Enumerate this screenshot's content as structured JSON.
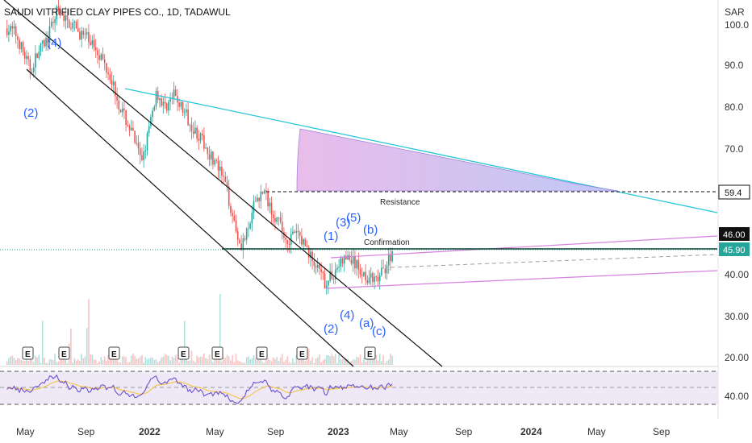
{
  "header": {
    "title": "SAUDI VITRIFIED CLAY PIPES CO., 1D, TADAWUL",
    "currency": "SAR"
  },
  "chart_data": {
    "type": "candlestick",
    "title": "SAUDI VITRIFIED CLAY PIPES CO., 1D, TADAWUL",
    "y_ticks": [
      "100.0",
      "90.0",
      "80.0",
      "70.0",
      "40.00",
      "30.00",
      "20.00"
    ],
    "x_ticks": [
      "May",
      "Sep",
      "2022",
      "May",
      "Sep",
      "2023",
      "May",
      "Sep",
      "2024",
      "May",
      "Sep"
    ],
    "rsi_tick": "40.00",
    "price_tags": [
      {
        "label": "59.4",
        "style": "outline"
      },
      {
        "label": "46.00",
        "style": "dark"
      },
      {
        "label": "45.90",
        "style": "green"
      }
    ],
    "annotations": [
      "Resistance",
      "Confirmation"
    ],
    "wave_labels": [
      "(4)",
      "(2)",
      "(1)",
      "(3)",
      "(5)",
      "(b)",
      "(2)",
      "(4)",
      "(a)",
      "(c)"
    ],
    "earnings_markers": [
      "E",
      "E",
      "E",
      "E",
      "E",
      "E",
      "E",
      "E"
    ],
    "ohlc_path": [
      [
        "2021-03-20",
        99
      ],
      [
        "2021-04-05",
        98
      ],
      [
        "2021-04-25",
        92
      ],
      [
        "2021-05-05",
        89
      ],
      [
        "2021-05-20",
        93
      ],
      [
        "2021-06-10",
        97
      ],
      [
        "2021-06-25",
        103
      ],
      [
        "2021-07-15",
        101
      ],
      [
        "2021-08-10",
        98
      ],
      [
        "2021-09-10",
        95
      ],
      [
        "2021-10-10",
        88
      ],
      [
        "2021-10-30",
        80
      ],
      [
        "2021-11-25",
        73
      ],
      [
        "2021-12-10",
        67
      ],
      [
        "2021-12-25",
        74
      ],
      [
        "2022-01-10",
        84
      ],
      [
        "2022-01-25",
        80
      ],
      [
        "2022-02-15",
        83
      ],
      [
        "2022-03-05",
        79
      ],
      [
        "2022-03-25",
        75
      ],
      [
        "2022-04-15",
        71
      ],
      [
        "2022-05-05",
        67
      ],
      [
        "2022-05-25",
        62
      ],
      [
        "2022-06-10",
        54
      ],
      [
        "2022-06-25",
        47
      ],
      [
        "2022-07-10",
        50
      ],
      [
        "2022-07-25",
        58
      ],
      [
        "2022-08-10",
        60
      ],
      [
        "2022-08-25",
        56
      ],
      [
        "2022-09-10",
        52
      ],
      [
        "2022-09-25",
        48
      ],
      [
        "2022-10-15",
        50
      ],
      [
        "2022-11-01",
        47
      ],
      [
        "2022-11-20",
        42
      ],
      [
        "2022-12-10",
        38
      ],
      [
        "2022-12-25",
        40
      ],
      [
        "2023-01-10",
        43
      ],
      [
        "2023-01-25",
        44
      ],
      [
        "2023-02-10",
        42
      ],
      [
        "2023-02-25",
        40
      ],
      [
        "2023-03-10",
        39
      ],
      [
        "2023-03-20",
        38
      ],
      [
        "2023-04-05",
        41
      ],
      [
        "2023-04-15",
        44
      ],
      [
        "2023-04-25",
        46
      ]
    ],
    "volume_ylim": [
      0,
      1
    ],
    "rsi_levels": {
      "upper": 70,
      "lower": 30
    }
  }
}
